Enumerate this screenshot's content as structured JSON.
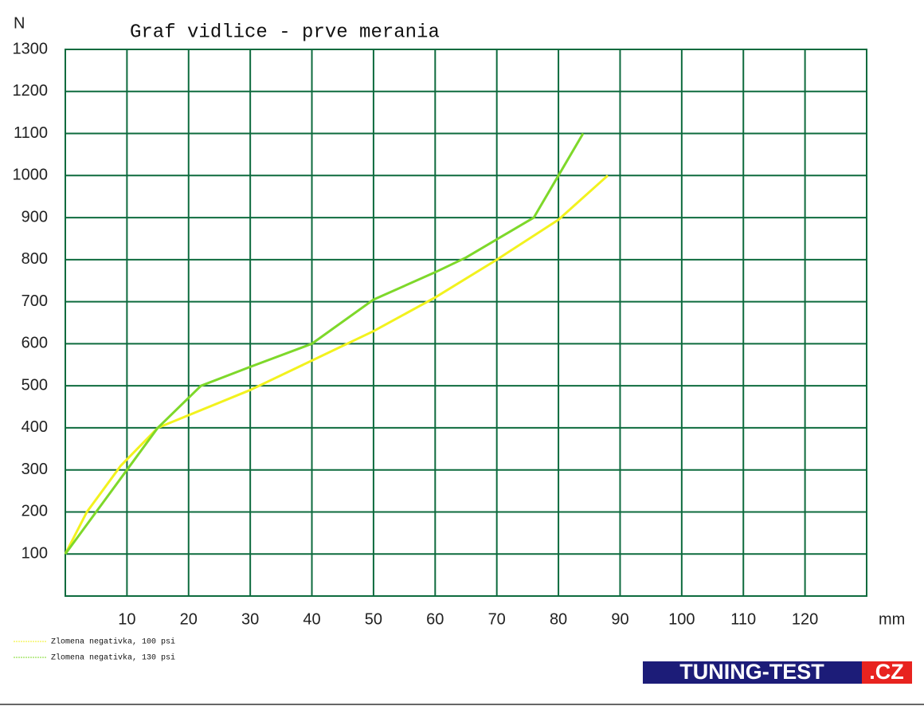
{
  "chart_data": {
    "type": "line",
    "title": "Graf vidlice - prve merania",
    "y_label": "N",
    "x_label": "mm",
    "xlim": [
      0,
      130
    ],
    "xticks": [
      10,
      20,
      30,
      40,
      50,
      60,
      70,
      80,
      90,
      100,
      110,
      120
    ],
    "ylim": [
      0,
      1300
    ],
    "yticks": [
      100,
      200,
      300,
      400,
      500,
      600,
      700,
      800,
      900,
      1000,
      1100,
      1200,
      1300
    ],
    "grid": true,
    "grid_color": "#0e6b3e",
    "series": [
      {
        "name": "Zlomena negativka, 100 psi",
        "color": "#f2f21e",
        "x": [
          0,
          3.5,
          9,
          15,
          30,
          40,
          50,
          60,
          70,
          80,
          88
        ],
        "values": [
          100,
          200,
          310,
          400,
          490,
          560,
          630,
          710,
          800,
          895,
          1000
        ]
      },
      {
        "name": "Zlomena negativka, 130 psi",
        "color": "#7ed82a",
        "x": [
          0,
          10,
          15,
          22,
          30,
          40,
          50,
          60,
          65,
          76,
          80,
          84
        ],
        "values": [
          100,
          300,
          400,
          500,
          545,
          600,
          705,
          770,
          805,
          900,
          1000,
          1100
        ]
      }
    ],
    "logo": {
      "main": "TUNING-TEST",
      "suffix": ".CZ"
    }
  }
}
